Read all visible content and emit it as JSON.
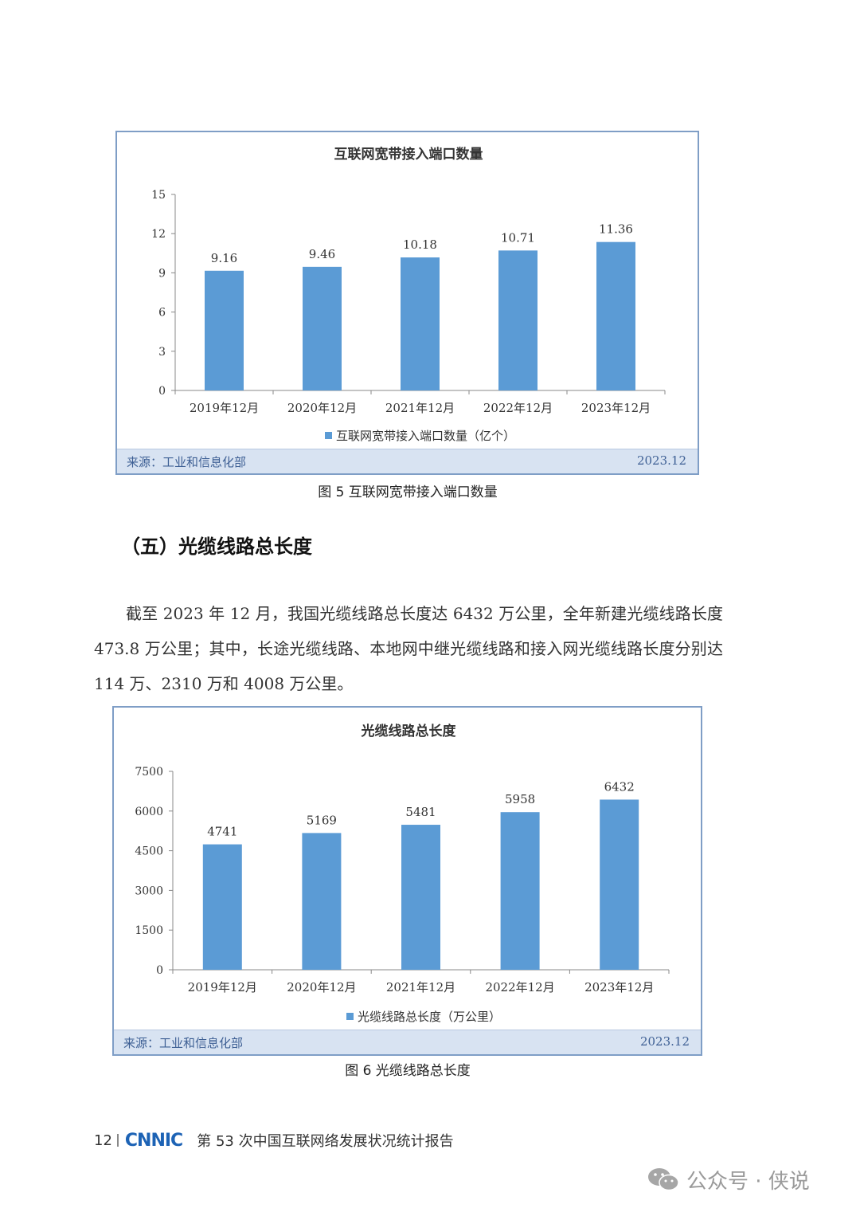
{
  "figure5": {
    "caption": "图 5  互联网宽带接入端口数量",
    "source": "来源：工业和信息化部",
    "date": "2023.12",
    "chart_data": {
      "type": "bar",
      "title": "互联网宽带接入端口数量",
      "categories": [
        "2019年12月",
        "2020年12月",
        "2021年12月",
        "2022年12月",
        "2023年12月"
      ],
      "series": [
        {
          "name": "互联网宽带接入端口数量（亿个）",
          "values": [
            9.16,
            9.46,
            10.18,
            10.71,
            11.36
          ]
        }
      ],
      "data_labels": [
        "9.16",
        "9.46",
        "10.18",
        "10.71",
        "11.36"
      ],
      "yticks": [
        "0",
        "3",
        "6",
        "9",
        "12",
        "15"
      ],
      "ylim": [
        0,
        15
      ],
      "grid": false,
      "legend": "bottom",
      "color": "#5b9bd5"
    }
  },
  "section": {
    "heading": "（五）光缆线路总长度",
    "paragraph": "截至 2023 年 12 月，我国光缆线路总长度达 6432 万公里，全年新建光缆线路长度 473.8 万公里；其中，长途光缆线路、本地网中继光缆线路和接入网光缆线路长度分别达 114 万、2310 万和 4008 万公里。"
  },
  "figure6": {
    "caption": "图 6  光缆线路总长度",
    "source": "来源：工业和信息化部",
    "date": "2023.12",
    "chart_data": {
      "type": "bar",
      "title": "光缆线路总长度",
      "categories": [
        "2019年12月",
        "2020年12月",
        "2021年12月",
        "2022年12月",
        "2023年12月"
      ],
      "series": [
        {
          "name": "光缆线路总长度（万公里）",
          "values": [
            4741,
            5169,
            5481,
            5958,
            6432
          ]
        }
      ],
      "data_labels": [
        "4741",
        "5169",
        "5481",
        "5958",
        "6432"
      ],
      "yticks": [
        "0",
        "1500",
        "3000",
        "4500",
        "6000",
        "7500"
      ],
      "ylim": [
        0,
        7500
      ],
      "grid": false,
      "legend": "bottom",
      "color": "#5b9bd5"
    }
  },
  "footer": {
    "page_number": "12",
    "logo": "CNNIC",
    "report_title": "第 53 次中国互联网络发展状况统计报告"
  },
  "watermark": {
    "text": "公众号 · 侠说",
    "icon": "wechat-icon"
  }
}
